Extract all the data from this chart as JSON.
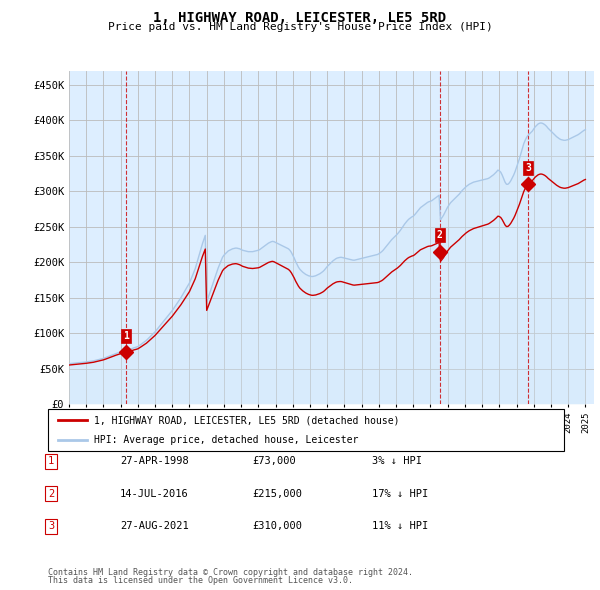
{
  "title": "1, HIGHWAY ROAD, LEICESTER, LE5 5RD",
  "subtitle": "Price paid vs. HM Land Registry's House Price Index (HPI)",
  "ylabel_ticks": [
    "£0",
    "£50K",
    "£100K",
    "£150K",
    "£200K",
    "£250K",
    "£300K",
    "£350K",
    "£400K",
    "£450K"
  ],
  "ytick_values": [
    0,
    50000,
    100000,
    150000,
    200000,
    250000,
    300000,
    350000,
    400000,
    450000
  ],
  "ylim": [
    0,
    470000
  ],
  "xlim_start": 1995.0,
  "xlim_end": 2025.5,
  "hpi_color": "#aac8e8",
  "hpi_fill_color": "#d0e8f8",
  "price_color": "#cc0000",
  "background_color": "#ddeeff",
  "grid_color": "#bbbbbb",
  "sales": [
    {
      "date_num": 1998.32,
      "price": 73000,
      "label": "1"
    },
    {
      "date_num": 2016.54,
      "price": 215000,
      "label": "2"
    },
    {
      "date_num": 2021.66,
      "price": 310000,
      "label": "3"
    }
  ],
  "sale_table": [
    {
      "num": "1",
      "date": "27-APR-1998",
      "price": "£73,000",
      "pct": "3% ↓ HPI"
    },
    {
      "num": "2",
      "date": "14-JUL-2016",
      "price": "£215,000",
      "pct": "17% ↓ HPI"
    },
    {
      "num": "3",
      "date": "27-AUG-2021",
      "price": "£310,000",
      "pct": "11% ↓ HPI"
    }
  ],
  "legend_line1": "1, HIGHWAY ROAD, LEICESTER, LE5 5RD (detached house)",
  "legend_line2": "HPI: Average price, detached house, Leicester",
  "footer1": "Contains HM Land Registry data © Crown copyright and database right 2024.",
  "footer2": "This data is licensed under the Open Government Licence v3.0.",
  "hpi_monthly": {
    "years": [
      1995.0,
      1995.083,
      1995.167,
      1995.25,
      1995.333,
      1995.417,
      1995.5,
      1995.583,
      1995.667,
      1995.75,
      1995.833,
      1995.917,
      1996.0,
      1996.083,
      1996.167,
      1996.25,
      1996.333,
      1996.417,
      1996.5,
      1996.583,
      1996.667,
      1996.75,
      1996.833,
      1996.917,
      1997.0,
      1997.083,
      1997.167,
      1997.25,
      1997.333,
      1997.417,
      1997.5,
      1997.583,
      1997.667,
      1997.75,
      1997.833,
      1997.917,
      1998.0,
      1998.083,
      1998.167,
      1998.25,
      1998.333,
      1998.417,
      1998.5,
      1998.583,
      1998.667,
      1998.75,
      1998.833,
      1998.917,
      1999.0,
      1999.083,
      1999.167,
      1999.25,
      1999.333,
      1999.417,
      1999.5,
      1999.583,
      1999.667,
      1999.75,
      1999.833,
      1999.917,
      2000.0,
      2000.083,
      2000.167,
      2000.25,
      2000.333,
      2000.417,
      2000.5,
      2000.583,
      2000.667,
      2000.75,
      2000.833,
      2000.917,
      2001.0,
      2001.083,
      2001.167,
      2001.25,
      2001.333,
      2001.417,
      2001.5,
      2001.583,
      2001.667,
      2001.75,
      2001.833,
      2001.917,
      2002.0,
      2002.083,
      2002.167,
      2002.25,
      2002.333,
      2002.417,
      2002.5,
      2002.583,
      2002.667,
      2002.75,
      2002.833,
      2002.917,
      2003.0,
      2003.083,
      2003.167,
      2003.25,
      2003.333,
      2003.417,
      2003.5,
      2003.583,
      2003.667,
      2003.75,
      2003.833,
      2003.917,
      2004.0,
      2004.083,
      2004.167,
      2004.25,
      2004.333,
      2004.417,
      2004.5,
      2004.583,
      2004.667,
      2004.75,
      2004.833,
      2004.917,
      2005.0,
      2005.083,
      2005.167,
      2005.25,
      2005.333,
      2005.417,
      2005.5,
      2005.583,
      2005.667,
      2005.75,
      2005.833,
      2005.917,
      2006.0,
      2006.083,
      2006.167,
      2006.25,
      2006.333,
      2006.417,
      2006.5,
      2006.583,
      2006.667,
      2006.75,
      2006.833,
      2006.917,
      2007.0,
      2007.083,
      2007.167,
      2007.25,
      2007.333,
      2007.417,
      2007.5,
      2007.583,
      2007.667,
      2007.75,
      2007.833,
      2007.917,
      2008.0,
      2008.083,
      2008.167,
      2008.25,
      2008.333,
      2008.417,
      2008.5,
      2008.583,
      2008.667,
      2008.75,
      2008.833,
      2008.917,
      2009.0,
      2009.083,
      2009.167,
      2009.25,
      2009.333,
      2009.417,
      2009.5,
      2009.583,
      2009.667,
      2009.75,
      2009.833,
      2009.917,
      2010.0,
      2010.083,
      2010.167,
      2010.25,
      2010.333,
      2010.417,
      2010.5,
      2010.583,
      2010.667,
      2010.75,
      2010.833,
      2010.917,
      2011.0,
      2011.083,
      2011.167,
      2011.25,
      2011.333,
      2011.417,
      2011.5,
      2011.583,
      2011.667,
      2011.75,
      2011.833,
      2011.917,
      2012.0,
      2012.083,
      2012.167,
      2012.25,
      2012.333,
      2012.417,
      2012.5,
      2012.583,
      2012.667,
      2012.75,
      2012.833,
      2012.917,
      2013.0,
      2013.083,
      2013.167,
      2013.25,
      2013.333,
      2013.417,
      2013.5,
      2013.583,
      2013.667,
      2013.75,
      2013.833,
      2013.917,
      2014.0,
      2014.083,
      2014.167,
      2014.25,
      2014.333,
      2014.417,
      2014.5,
      2014.583,
      2014.667,
      2014.75,
      2014.833,
      2014.917,
      2015.0,
      2015.083,
      2015.167,
      2015.25,
      2015.333,
      2015.417,
      2015.5,
      2015.583,
      2015.667,
      2015.75,
      2015.833,
      2015.917,
      2016.0,
      2016.083,
      2016.167,
      2016.25,
      2016.333,
      2016.417,
      2016.5,
      2016.583,
      2016.667,
      2016.75,
      2016.833,
      2016.917,
      2017.0,
      2017.083,
      2017.167,
      2017.25,
      2017.333,
      2017.417,
      2017.5,
      2017.583,
      2017.667,
      2017.75,
      2017.833,
      2017.917,
      2018.0,
      2018.083,
      2018.167,
      2018.25,
      2018.333,
      2018.417,
      2018.5,
      2018.583,
      2018.667,
      2018.75,
      2018.833,
      2018.917,
      2019.0,
      2019.083,
      2019.167,
      2019.25,
      2019.333,
      2019.417,
      2019.5,
      2019.583,
      2019.667,
      2019.75,
      2019.833,
      2019.917,
      2020.0,
      2020.083,
      2020.167,
      2020.25,
      2020.333,
      2020.417,
      2020.5,
      2020.583,
      2020.667,
      2020.75,
      2020.833,
      2020.917,
      2021.0,
      2021.083,
      2021.167,
      2021.25,
      2021.333,
      2021.417,
      2021.5,
      2021.583,
      2021.667,
      2021.75,
      2021.833,
      2021.917,
      2022.0,
      2022.083,
      2022.167,
      2022.25,
      2022.333,
      2022.417,
      2022.5,
      2022.583,
      2022.667,
      2022.75,
      2022.833,
      2022.917,
      2023.0,
      2023.083,
      2023.167,
      2023.25,
      2023.333,
      2023.417,
      2023.5,
      2023.583,
      2023.667,
      2023.75,
      2023.833,
      2023.917,
      2024.0,
      2024.083,
      2024.167,
      2024.25,
      2024.333,
      2024.417,
      2024.5,
      2024.583,
      2024.667,
      2024.75,
      2024.833,
      2024.917,
      2025.0
    ],
    "values": [
      57000,
      57200,
      57400,
      57600,
      57800,
      58000,
      58200,
      58400,
      58600,
      58800,
      59000,
      59200,
      59500,
      59800,
      60100,
      60400,
      60700,
      61000,
      61500,
      62000,
      62500,
      63000,
      63500,
      64000,
      64500,
      65200,
      66000,
      66800,
      67600,
      68400,
      69200,
      70000,
      70800,
      71500,
      72200,
      72900,
      73500,
      74000,
      74500,
      75000,
      75500,
      76000,
      76800,
      77600,
      78400,
      79200,
      79800,
      80500,
      81200,
      82500,
      84000,
      85500,
      87000,
      88500,
      90000,
      92000,
      94000,
      96000,
      98000,
      100000,
      102000,
      104500,
      107000,
      109500,
      112000,
      114500,
      117000,
      119500,
      122000,
      124500,
      127000,
      129500,
      132000,
      135000,
      138000,
      141000,
      144000,
      147000,
      150000,
      153500,
      157000,
      160500,
      164000,
      167500,
      171000,
      176000,
      181000,
      186000,
      191000,
      198000,
      205000,
      212000,
      219000,
      226000,
      232000,
      238000,
      144000,
      150000,
      156000,
      162000,
      168000,
      174000,
      180000,
      186000,
      192000,
      197000,
      202000,
      207000,
      210000,
      212000,
      214000,
      216000,
      217000,
      218000,
      219000,
      219500,
      220000,
      220000,
      219500,
      219000,
      218000,
      217000,
      216500,
      216000,
      215500,
      215000,
      215000,
      215000,
      215000,
      215500,
      216000,
      216500,
      217000,
      218000,
      219500,
      221000,
      222500,
      224000,
      225500,
      227000,
      228000,
      229000,
      229500,
      229000,
      228000,
      227000,
      226000,
      225000,
      224000,
      223000,
      222000,
      221000,
      220000,
      219000,
      217000,
      214000,
      210000,
      206000,
      201000,
      197000,
      193000,
      190000,
      188000,
      186000,
      184500,
      183000,
      182000,
      181000,
      180500,
      180000,
      180000,
      180500,
      181000,
      182000,
      183000,
      184000,
      185500,
      187000,
      189000,
      191500,
      194000,
      196000,
      198000,
      200000,
      202000,
      203500,
      205000,
      206000,
      206500,
      207000,
      207000,
      206500,
      206000,
      205500,
      205000,
      204500,
      204000,
      203500,
      203000,
      203000,
      203500,
      204000,
      204500,
      205000,
      205500,
      206000,
      206500,
      207000,
      207500,
      208000,
      208500,
      209000,
      209500,
      210000,
      210500,
      211000,
      212000,
      213500,
      215000,
      217000,
      219500,
      222000,
      224500,
      227000,
      229500,
      232000,
      234000,
      236000,
      238000,
      240000,
      242500,
      245000,
      248000,
      251000,
      254000,
      256500,
      259000,
      261000,
      262500,
      264000,
      265000,
      267000,
      269500,
      272000,
      274500,
      277000,
      278500,
      280000,
      281500,
      283000,
      284500,
      285500,
      286000,
      287000,
      288500,
      290000,
      291500,
      293000,
      294500,
      260000,
      263000,
      266000,
      270000,
      274000,
      278000,
      281000,
      284000,
      286000,
      288000,
      290000,
      292000,
      294000,
      296000,
      298500,
      301000,
      303000,
      305000,
      307000,
      308500,
      310000,
      311000,
      312000,
      313000,
      313500,
      314000,
      314500,
      315000,
      315500,
      316000,
      316500,
      317000,
      317500,
      318000,
      319000,
      320500,
      322000,
      323500,
      325500,
      327500,
      330000,
      329000,
      327000,
      323000,
      318000,
      313000,
      310000,
      310000,
      312000,
      315000,
      319000,
      323000,
      328000,
      334000,
      340000,
      346000,
      353000,
      360000,
      367000,
      372000,
      376000,
      379000,
      381000,
      383000,
      385000,
      388000,
      391000,
      393000,
      395000,
      396000,
      396500,
      396000,
      395000,
      393500,
      391500,
      389000,
      387000,
      385000,
      383000,
      381000,
      379000,
      377000,
      375500,
      374000,
      373000,
      372500,
      372000,
      372000,
      372500,
      373000,
      374000,
      375000,
      376000,
      377000,
      378000,
      379000,
      380000,
      381500,
      383000,
      384500,
      386000,
      387000
    ]
  }
}
